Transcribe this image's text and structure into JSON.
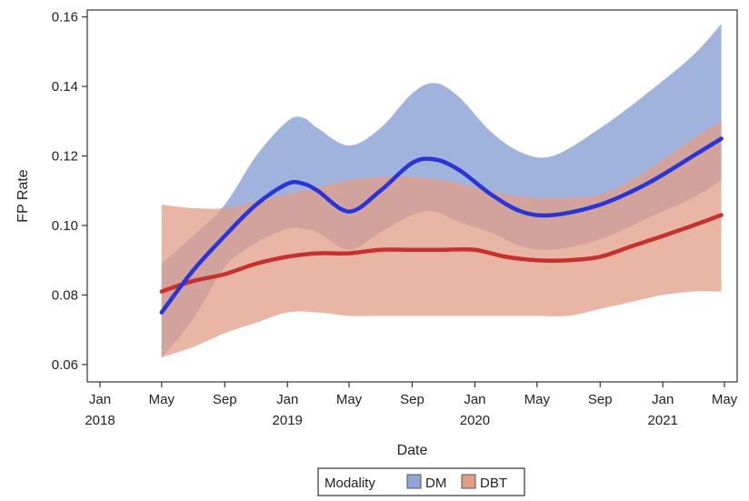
{
  "chart_data": {
    "type": "area",
    "xlabel": "Date",
    "ylabel": "FP Rate",
    "xlim": [
      "2018-01-01",
      "2021-05-01"
    ],
    "ylim": [
      0.055,
      0.162
    ],
    "x_ticks": [
      {
        "date": "2018-01-01",
        "line1": "Jan",
        "line2": "2018"
      },
      {
        "date": "2018-05-01",
        "line1": "May",
        "line2": ""
      },
      {
        "date": "2018-09-01",
        "line1": "Sep",
        "line2": ""
      },
      {
        "date": "2019-01-01",
        "line1": "Jan",
        "line2": "2019"
      },
      {
        "date": "2019-05-01",
        "line1": "May",
        "line2": ""
      },
      {
        "date": "2019-09-01",
        "line1": "Sep",
        "line2": ""
      },
      {
        "date": "2020-01-01",
        "line1": "Jan",
        "line2": "2020"
      },
      {
        "date": "2020-05-01",
        "line1": "May",
        "line2": ""
      },
      {
        "date": "2020-09-01",
        "line1": "Sep",
        "line2": ""
      },
      {
        "date": "2021-01-01",
        "line1": "Jan",
        "line2": "2021"
      },
      {
        "date": "2021-05-01",
        "line1": "May",
        "line2": ""
      }
    ],
    "y_ticks": [
      "0.06",
      "0.08",
      "0.10",
      "0.12",
      "0.14",
      "0.16"
    ],
    "legend": {
      "title": "Modality",
      "position": "bottom-center"
    },
    "series": [
      {
        "name": "DM",
        "band_color": "#8fa6d6",
        "line_color": "#2a35d8",
        "points": [
          {
            "x": "2018-05-01",
            "y": 0.075,
            "lower": 0.062,
            "upper": 0.089
          },
          {
            "x": "2018-07-01",
            "y": 0.087,
            "lower": 0.073,
            "upper": 0.097
          },
          {
            "x": "2018-09-01",
            "y": 0.097,
            "lower": 0.088,
            "upper": 0.106
          },
          {
            "x": "2018-11-01",
            "y": 0.106,
            "lower": 0.095,
            "upper": 0.12
          },
          {
            "x": "2019-01-01",
            "y": 0.112,
            "lower": 0.099,
            "upper": 0.13
          },
          {
            "x": "2019-02-01",
            "y": 0.112,
            "lower": 0.099,
            "upper": 0.131
          },
          {
            "x": "2019-03-01",
            "y": 0.11,
            "lower": 0.098,
            "upper": 0.128
          },
          {
            "x": "2019-05-01",
            "y": 0.104,
            "lower": 0.093,
            "upper": 0.123
          },
          {
            "x": "2019-07-01",
            "y": 0.11,
            "lower": 0.098,
            "upper": 0.128
          },
          {
            "x": "2019-09-01",
            "y": 0.118,
            "lower": 0.103,
            "upper": 0.138
          },
          {
            "x": "2019-10-15",
            "y": 0.119,
            "lower": 0.104,
            "upper": 0.141
          },
          {
            "x": "2019-12-01",
            "y": 0.116,
            "lower": 0.101,
            "upper": 0.137
          },
          {
            "x": "2020-02-01",
            "y": 0.109,
            "lower": 0.098,
            "upper": 0.127
          },
          {
            "x": "2020-04-01",
            "y": 0.104,
            "lower": 0.094,
            "upper": 0.121
          },
          {
            "x": "2020-06-01",
            "y": 0.103,
            "lower": 0.093,
            "upper": 0.12
          },
          {
            "x": "2020-09-01",
            "y": 0.106,
            "lower": 0.096,
            "upper": 0.128
          },
          {
            "x": "2020-12-01",
            "y": 0.112,
            "lower": 0.102,
            "upper": 0.138
          },
          {
            "x": "2021-03-01",
            "y": 0.12,
            "lower": 0.108,
            "upper": 0.149
          },
          {
            "x": "2021-04-25",
            "y": 0.125,
            "lower": 0.113,
            "upper": 0.158
          }
        ]
      },
      {
        "name": "DBT",
        "band_color": "#e29e87",
        "line_color": "#c8302c",
        "points": [
          {
            "x": "2018-05-01",
            "y": 0.081,
            "lower": 0.062,
            "upper": 0.106
          },
          {
            "x": "2018-07-01",
            "y": 0.084,
            "lower": 0.065,
            "upper": 0.105
          },
          {
            "x": "2018-09-01",
            "y": 0.086,
            "lower": 0.069,
            "upper": 0.105
          },
          {
            "x": "2018-11-01",
            "y": 0.089,
            "lower": 0.072,
            "upper": 0.107
          },
          {
            "x": "2019-01-01",
            "y": 0.091,
            "lower": 0.075,
            "upper": 0.109
          },
          {
            "x": "2019-03-01",
            "y": 0.092,
            "lower": 0.075,
            "upper": 0.111
          },
          {
            "x": "2019-05-01",
            "y": 0.092,
            "lower": 0.074,
            "upper": 0.113
          },
          {
            "x": "2019-07-01",
            "y": 0.093,
            "lower": 0.074,
            "upper": 0.114
          },
          {
            "x": "2019-09-01",
            "y": 0.093,
            "lower": 0.074,
            "upper": 0.114
          },
          {
            "x": "2019-11-01",
            "y": 0.093,
            "lower": 0.074,
            "upper": 0.113
          },
          {
            "x": "2020-01-01",
            "y": 0.093,
            "lower": 0.074,
            "upper": 0.111
          },
          {
            "x": "2020-03-01",
            "y": 0.091,
            "lower": 0.074,
            "upper": 0.109
          },
          {
            "x": "2020-05-01",
            "y": 0.09,
            "lower": 0.074,
            "upper": 0.108
          },
          {
            "x": "2020-07-01",
            "y": 0.09,
            "lower": 0.074,
            "upper": 0.108
          },
          {
            "x": "2020-09-01",
            "y": 0.091,
            "lower": 0.076,
            "upper": 0.109
          },
          {
            "x": "2020-11-01",
            "y": 0.094,
            "lower": 0.078,
            "upper": 0.113
          },
          {
            "x": "2021-01-01",
            "y": 0.097,
            "lower": 0.08,
            "upper": 0.119
          },
          {
            "x": "2021-03-01",
            "y": 0.1,
            "lower": 0.081,
            "upper": 0.125
          },
          {
            "x": "2021-04-25",
            "y": 0.103,
            "lower": 0.081,
            "upper": 0.13
          }
        ]
      }
    ]
  }
}
